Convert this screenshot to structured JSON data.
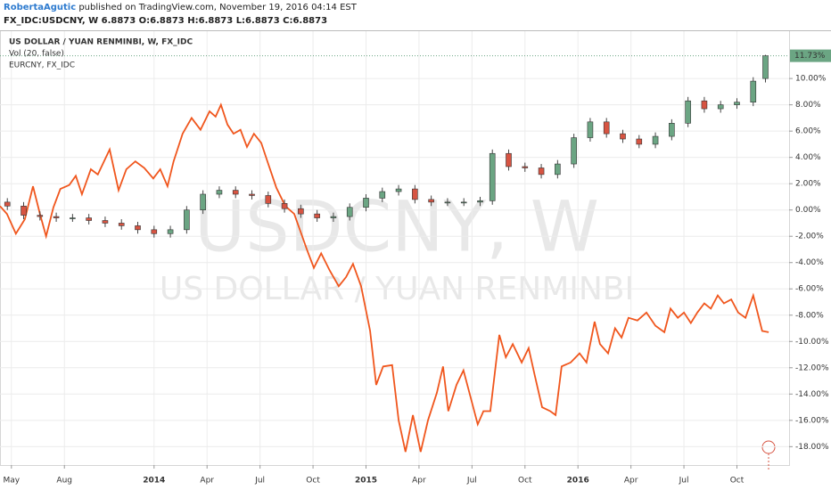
{
  "header": {
    "author": "RobertaAgutic",
    "published": "published on TradingView.com, November 19, 2016 04:14 EST",
    "symbol_line": "FX_IDC:USDCNY, W  6.8873 O:6.8873 H:6.8873 L:6.8873 C:6.8873"
  },
  "chart_data": {
    "type": "candlestick",
    "legend": [
      "US DOLLAR / YUAN RENMINBI, W, FX_IDC",
      "Vol (20, false)",
      "EURCNY, FX_IDC"
    ],
    "watermark": [
      "USDCNY, W",
      "US DOLLAR / YUAN RENMINBI"
    ],
    "xlim": [
      -2.8,
      190.8
    ],
    "ylim": [
      -19.4,
      13.6
    ],
    "xticks": [
      {
        "value": 0,
        "label": "May"
      },
      {
        "value": 13,
        "label": "Aug"
      },
      {
        "value": 35,
        "label": "2014"
      },
      {
        "value": 48,
        "label": "Apr"
      },
      {
        "value": 61,
        "label": "Jul"
      },
      {
        "value": 74,
        "label": "Oct"
      },
      {
        "value": 87,
        "label": "2015"
      },
      {
        "value": 100,
        "label": "Apr"
      },
      {
        "value": 113,
        "label": "Jul"
      },
      {
        "value": 126,
        "label": "Oct"
      },
      {
        "value": 139,
        "label": "2016"
      },
      {
        "value": 152,
        "label": "Apr"
      },
      {
        "value": 165,
        "label": "Jul"
      },
      {
        "value": 178,
        "label": "Oct"
      }
    ],
    "yticks": [
      {
        "value": -18,
        "label": "-18.00%"
      },
      {
        "value": -16,
        "label": "-16.00%"
      },
      {
        "value": -14,
        "label": "-14.00%"
      },
      {
        "value": -12,
        "label": "-12.00%"
      },
      {
        "value": -10,
        "label": "-10.00%"
      },
      {
        "value": -8,
        "label": "-8.00%"
      },
      {
        "value": -6,
        "label": "-6.00%"
      },
      {
        "value": -4,
        "label": "-4.00%"
      },
      {
        "value": -2,
        "label": "-2.00%"
      },
      {
        "value": 0,
        "label": "0.00%"
      },
      {
        "value": 2,
        "label": "2.00%"
      },
      {
        "value": 4,
        "label": "4.00%"
      },
      {
        "value": 6,
        "label": "6.00%"
      },
      {
        "value": 8,
        "label": "8.00%"
      },
      {
        "value": 10,
        "label": "10.00%"
      }
    ],
    "grid": true,
    "last_value": {
      "value": 11.73,
      "label": "11.73%"
    },
    "candles": {
      "up_color": "#6ba583",
      "down_color": "#d75442",
      "x": [
        -1,
        3,
        7,
        11,
        15,
        19,
        23,
        27,
        31,
        35,
        39,
        43,
        47,
        51,
        55,
        59,
        63,
        67,
        71,
        75,
        79,
        83,
        87,
        91,
        95,
        99,
        103,
        107,
        111,
        115,
        118,
        122,
        126,
        130,
        134,
        138,
        142,
        146,
        150,
        154,
        158,
        162,
        166,
        170,
        174,
        178,
        182,
        185
      ],
      "open": [
        0.6,
        0.3,
        -0.4,
        -0.5,
        -0.6,
        -0.6,
        -0.8,
        -1.0,
        -1.2,
        -1.5,
        -1.8,
        -1.5,
        0.0,
        1.2,
        1.5,
        1.2,
        1.1,
        0.5,
        0.1,
        -0.3,
        -0.6,
        -0.5,
        0.2,
        0.9,
        1.4,
        1.6,
        0.8,
        0.6,
        0.6,
        0.6,
        0.7,
        4.3,
        3.3,
        3.2,
        2.7,
        3.5,
        5.5,
        6.7,
        5.8,
        5.4,
        5.0,
        5.6,
        6.6,
        8.3,
        7.7,
        8.0,
        8.2,
        10.0
      ],
      "high": [
        0.9,
        0.6,
        -0.1,
        -0.2,
        -0.3,
        -0.3,
        -0.5,
        -0.7,
        -0.9,
        -1.2,
        -1.2,
        0.3,
        1.5,
        1.8,
        1.8,
        1.5,
        1.4,
        0.8,
        0.4,
        0.0,
        -0.2,
        0.5,
        1.2,
        1.7,
        1.9,
        1.9,
        1.1,
        0.9,
        0.9,
        1.0,
        4.6,
        4.6,
        3.6,
        3.5,
        3.8,
        5.8,
        7.0,
        7.0,
        6.1,
        5.7,
        5.9,
        6.9,
        8.6,
        8.6,
        8.3,
        8.5,
        10.1,
        11.8
      ],
      "low": [
        0.0,
        -0.7,
        -0.8,
        -0.9,
        -0.9,
        -1.1,
        -1.3,
        -1.5,
        -1.8,
        -2.1,
        -2.1,
        -1.8,
        -0.3,
        0.9,
        0.9,
        0.8,
        0.2,
        -0.2,
        -0.6,
        -0.9,
        -0.9,
        -0.8,
        -0.1,
        0.6,
        1.1,
        0.5,
        0.3,
        0.3,
        0.3,
        0.3,
        0.4,
        3.0,
        2.9,
        2.4,
        2.4,
        3.2,
        5.2,
        5.5,
        5.1,
        4.7,
        4.7,
        5.3,
        6.3,
        7.4,
        7.4,
        7.7,
        7.9,
        9.7
      ],
      "close": [
        0.3,
        -0.4,
        -0.5,
        -0.6,
        -0.6,
        -0.8,
        -1.0,
        -1.2,
        -1.5,
        -1.8,
        -1.5,
        0.0,
        1.2,
        1.5,
        1.2,
        1.1,
        0.5,
        0.1,
        -0.3,
        -0.6,
        -0.5,
        0.2,
        0.9,
        1.4,
        1.6,
        0.8,
        0.6,
        0.6,
        0.6,
        0.7,
        4.3,
        3.3,
        3.2,
        2.7,
        3.5,
        5.5,
        6.7,
        5.8,
        5.4,
        5.0,
        5.6,
        6.6,
        8.3,
        7.7,
        8.0,
        8.2,
        9.8,
        11.73
      ]
    },
    "series": [
      {
        "name": "EURCNY, FX_IDC",
        "color": "#f0561d",
        "x": [
          -2.8,
          -1.1,
          1.1,
          3.3,
          5.3,
          7,
          8.5,
          10.3,
          12,
          14.2,
          15.8,
          17.3,
          19.5,
          21.2,
          24.1,
          26.3,
          28.2,
          30.4,
          32.6,
          34.8,
          36.5,
          38.3,
          39.8,
          42,
          44.2,
          46.4,
          48.6,
          50.1,
          51.4,
          53,
          54.5,
          56.2,
          57.8,
          59.5,
          61.3,
          62.8,
          65,
          67.2,
          69.4,
          72.6,
          74.2,
          76,
          78.1,
          80.3,
          82.1,
          83.8,
          85.8,
          88,
          89.5,
          91.2,
          93.4,
          95,
          96.7,
          98.5,
          100.4,
          102.2,
          104.4,
          105.9,
          107.2,
          109.2,
          110.9,
          112.7,
          114.4,
          115.8,
          117.5,
          119.7,
          121.3,
          123,
          125.2,
          126.9,
          128.4,
          130.2,
          132.2,
          133.5,
          135,
          137.2,
          139.4,
          141.1,
          143.1,
          144.4,
          146.4,
          148.1,
          149.7,
          151.4,
          153.6,
          155.8,
          158,
          160.2,
          161.7,
          163.5,
          165,
          166.7,
          168.3,
          170,
          171.6,
          173.3,
          174.8,
          176.6,
          178.3,
          180.1,
          182,
          184.2,
          185.8
        ],
        "values": [
          0.3,
          -0.3,
          -1.8,
          -0.7,
          1.8,
          -0.3,
          -2.0,
          0.2,
          1.6,
          1.9,
          2.6,
          1.2,
          3.1,
          2.7,
          4.6,
          1.5,
          3.1,
          3.7,
          3.2,
          2.4,
          3.1,
          1.8,
          3.7,
          5.8,
          7.0,
          6.1,
          7.5,
          7.1,
          8.0,
          6.5,
          5.8,
          6.1,
          4.8,
          5.8,
          5.1,
          3.7,
          1.7,
          0.3,
          -0.3,
          -3.1,
          -4.4,
          -3.3,
          -4.6,
          -5.8,
          -5.1,
          -4.1,
          -5.8,
          -9.2,
          -13.3,
          -11.9,
          -11.8,
          -16.0,
          -18.4,
          -15.6,
          -18.4,
          -16.0,
          -13.9,
          -11.9,
          -15.3,
          -13.3,
          -12.2,
          -14.3,
          -16.3,
          -15.3,
          -15.3,
          -9.5,
          -11.2,
          -10.2,
          -11.6,
          -10.5,
          -12.6,
          -15.0,
          -15.3,
          -15.6,
          -11.9,
          -11.6,
          -10.9,
          -11.6,
          -8.5,
          -10.2,
          -10.9,
          -9.0,
          -9.7,
          -8.2,
          -8.4,
          -7.8,
          -8.8,
          -9.3,
          -7.5,
          -8.2,
          -7.8,
          -8.6,
          -7.8,
          -7.1,
          -7.5,
          -6.5,
          -7.1,
          -6.8,
          -7.8,
          -8.2,
          -6.5,
          -9.2,
          -9.3
        ]
      }
    ]
  }
}
